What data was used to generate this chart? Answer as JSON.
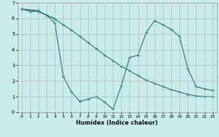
{
  "xlabel": "Humidex (Indice chaleur)",
  "bg_color": "#c8ecec",
  "line_color": "#2d7d7d",
  "grid_color": "#b0b0b0",
  "xlim": [
    -0.5,
    23.5
  ],
  "ylim": [
    0,
    7
  ],
  "xticks": [
    0,
    1,
    2,
    3,
    4,
    5,
    6,
    7,
    8,
    9,
    10,
    11,
    12,
    13,
    14,
    15,
    16,
    17,
    18,
    19,
    20,
    21,
    22,
    23
  ],
  "yticks": [
    0,
    1,
    2,
    3,
    4,
    5,
    6,
    7
  ],
  "line1_x": [
    0,
    1,
    2,
    3,
    4,
    5,
    6,
    7,
    8,
    9,
    10,
    11,
    12,
    13,
    14,
    15,
    16,
    17,
    18,
    19,
    20,
    21,
    22,
    23
  ],
  "line1_y": [
    6.6,
    6.45,
    6.45,
    6.2,
    5.95,
    5.6,
    5.25,
    4.85,
    4.45,
    4.05,
    3.65,
    3.3,
    2.95,
    2.65,
    2.35,
    2.05,
    1.85,
    1.65,
    1.45,
    1.3,
    1.15,
    1.05,
    1.0,
    1.0
  ],
  "line2_x": [
    0,
    2,
    3,
    4,
    5,
    6,
    7,
    8,
    9,
    10,
    11,
    12,
    13,
    14,
    15,
    16,
    17,
    18,
    19,
    20,
    21,
    22,
    23
  ],
  "line2_y": [
    6.6,
    6.45,
    6.2,
    5.7,
    2.3,
    1.3,
    0.7,
    0.85,
    1.0,
    0.65,
    0.2,
    1.7,
    3.5,
    3.65,
    5.1,
    5.85,
    5.6,
    5.3,
    4.85,
    2.8,
    1.65,
    1.5,
    1.4
  ],
  "line3_x": [
    0,
    2,
    3,
    4
  ],
  "line3_y": [
    6.6,
    6.5,
    6.2,
    6.0
  ]
}
